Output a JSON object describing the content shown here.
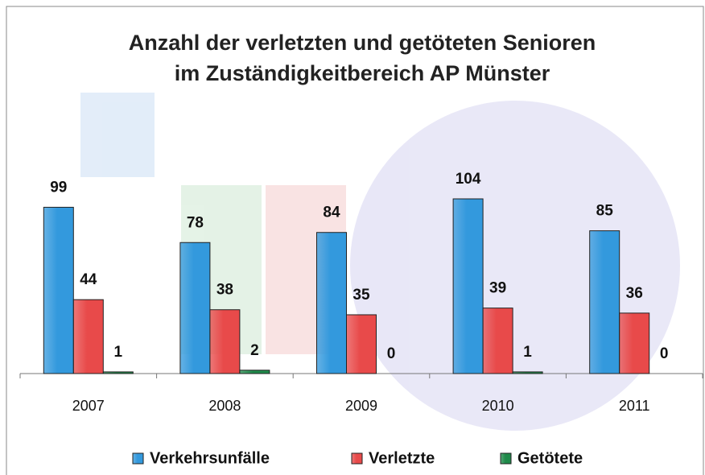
{
  "chart_data": {
    "type": "bar",
    "title": [
      "Anzahl der verletzten und getöteten Senioren",
      "im Zuständigkeitbereich AP Münster"
    ],
    "categories": [
      "2007",
      "2008",
      "2009",
      "2010",
      "2011"
    ],
    "series": [
      {
        "name": "Verkehrsunfälle",
        "color": "#3399dd",
        "values": [
          99,
          78,
          84,
          104,
          85
        ]
      },
      {
        "name": "Verletzte",
        "color": "#e84a4a",
        "values": [
          44,
          38,
          35,
          39,
          36
        ]
      },
      {
        "name": "Getötete",
        "color": "#1f8a4a",
        "values": [
          1,
          2,
          0,
          1,
          0
        ]
      }
    ]
  }
}
